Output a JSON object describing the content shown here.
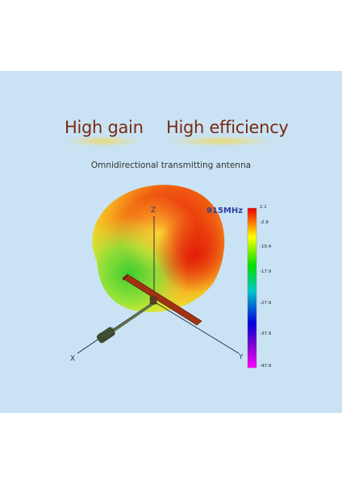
{
  "headlines": {
    "left": "High gain",
    "right": "High efficiency"
  },
  "subtitle": "Omnidirectional transmitting antenna",
  "frequency_label": "915MHz",
  "colorbar": {
    "ticks": [
      "2.1",
      "-2.9",
      "-10.4",
      "-17.9",
      "-27.9",
      "-37.9",
      "-47.9"
    ],
    "colors": [
      "#e00000",
      "#ffff00",
      "#00e000",
      "#00c8c8",
      "#0000e0",
      "#ff00ff"
    ]
  },
  "axes": {
    "z": "Z",
    "x": "X",
    "y": "Y"
  },
  "colors": {
    "panel_background": "#c9e3f4",
    "headline_text": "#7a2a12",
    "frequency_text": "#2c3f9f"
  }
}
